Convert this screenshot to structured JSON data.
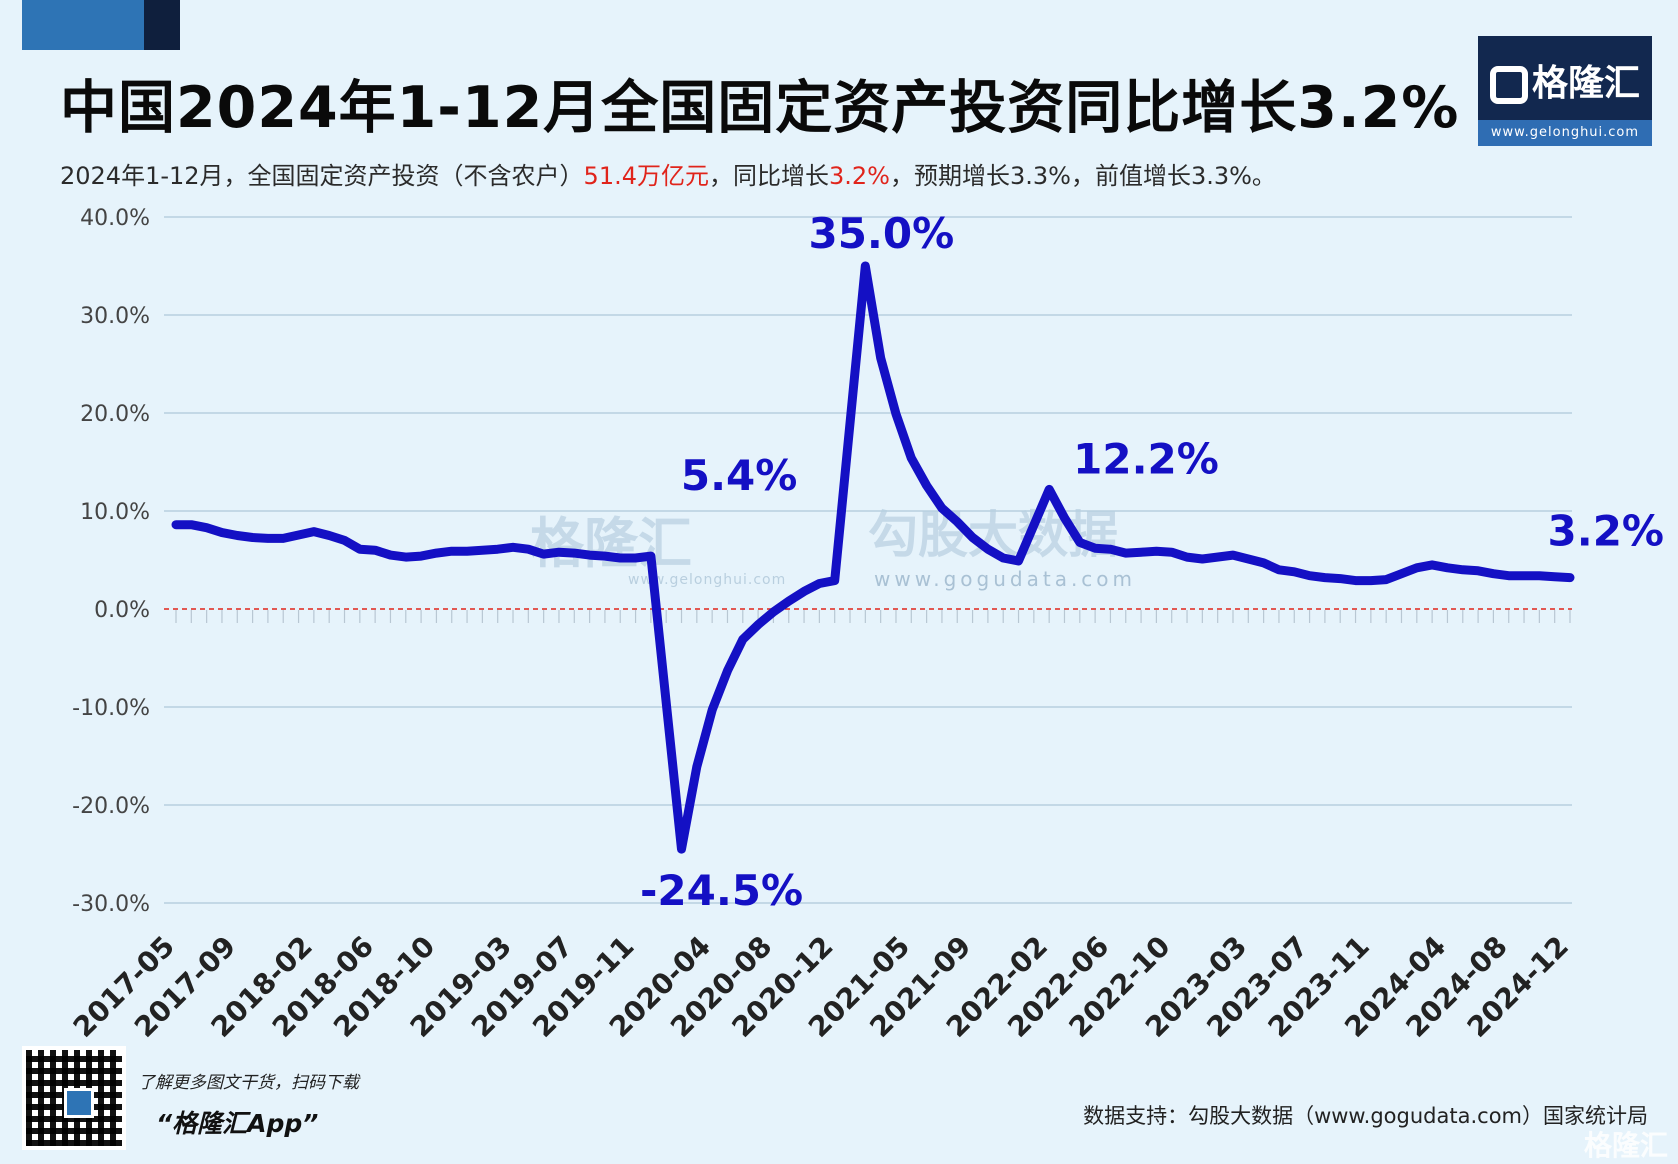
{
  "header": {
    "title": "中国2024年1-12月全国固定资产投资同比增长3.2%",
    "subtitle_part1": "2024年1-12月，全国固定资产投资（不含农户）",
    "subtitle_red1": "51.4万亿元",
    "subtitle_part2": "，同比增长",
    "subtitle_red2": "3.2%",
    "subtitle_part3": "，预期增长3.3%，前值增长3.3%。"
  },
  "logo": {
    "brand": "格隆汇",
    "url": "www.gelonghui.com"
  },
  "watermarks": {
    "gelonghui_cn": "格隆汇",
    "gelonghui_url": "www.gelonghui.com",
    "gogudata_cn": "勾股大数据",
    "gogudata_url": "www.gogudata.com"
  },
  "footer": {
    "promo": "了解更多图文干货，扫码下载",
    "app": "“格隆汇App”",
    "source": "数据支持：勾股大数据（www.gogudata.com）国家统计局",
    "corner_brand": "格隆汇"
  },
  "colors": {
    "line": "#1410c4",
    "zero_line": "#e0241b",
    "grid": "#b7cfdf",
    "label": "#1410c4"
  },
  "chart_data": {
    "type": "line",
    "y_unit": "%",
    "ylim": [
      -30,
      40
    ],
    "yticks": [
      "40.0%",
      "30.0%",
      "20.0%",
      "10.0%",
      "0.0%",
      "-10.0%",
      "-20.0%",
      "-30.0%"
    ],
    "ytick_values": [
      40,
      30,
      20,
      10,
      0,
      -10,
      -20,
      -30
    ],
    "grid": true,
    "xtick_labels": [
      "2017-05",
      "2017-09",
      "2018-02",
      "2018-06",
      "2018-10",
      "2019-03",
      "2019-07",
      "2019-11",
      "2020-04",
      "2020-08",
      "2020-12",
      "2021-05",
      "2021-09",
      "2022-02",
      "2022-06",
      "2022-10",
      "2023-03",
      "2023-07",
      "2023-11",
      "2024-04",
      "2024-08",
      "2024-12"
    ],
    "series": [
      {
        "x": [
          "2017-05",
          "2017-06",
          "2017-07",
          "2017-08",
          "2017-09",
          "2017-10",
          "2017-11",
          "2017-12",
          "2018-02",
          "2018-03",
          "2018-04",
          "2018-05",
          "2018-06",
          "2018-07",
          "2018-08",
          "2018-09",
          "2018-10",
          "2018-11",
          "2018-12",
          "2019-02",
          "2019-03",
          "2019-04",
          "2019-05",
          "2019-06",
          "2019-07",
          "2019-08",
          "2019-09",
          "2019-10",
          "2019-11",
          "2019-12",
          "2020-02",
          "2020-03",
          "2020-04",
          "2020-05",
          "2020-06",
          "2020-07",
          "2020-08",
          "2020-09",
          "2020-10",
          "2020-11",
          "2020-12",
          "2021-02",
          "2021-03",
          "2021-04",
          "2021-05",
          "2021-06",
          "2021-07",
          "2021-08",
          "2021-09",
          "2021-10",
          "2021-11",
          "2021-12",
          "2022-02",
          "2022-03",
          "2022-04",
          "2022-05",
          "2022-06",
          "2022-07",
          "2022-08",
          "2022-09",
          "2022-10",
          "2022-11",
          "2022-12",
          "2023-02",
          "2023-03",
          "2023-04",
          "2023-05",
          "2023-06",
          "2023-07",
          "2023-08",
          "2023-09",
          "2023-10",
          "2023-11",
          "2023-12",
          "2024-02",
          "2024-03",
          "2024-04",
          "2024-05",
          "2024-06",
          "2024-07",
          "2024-08",
          "2024-09",
          "2024-10",
          "2024-11",
          "2024-12"
        ],
        "values": [
          8.6,
          8.6,
          8.3,
          7.8,
          7.5,
          7.3,
          7.2,
          7.2,
          7.9,
          7.5,
          7.0,
          6.1,
          6.0,
          5.5,
          5.3,
          5.4,
          5.7,
          5.9,
          5.9,
          6.1,
          6.3,
          6.1,
          5.6,
          5.8,
          5.7,
          5.5,
          5.4,
          5.2,
          5.2,
          5.4,
          -24.5,
          -16.1,
          -10.3,
          -6.3,
          -3.1,
          -1.6,
          -0.3,
          0.8,
          1.8,
          2.6,
          2.9,
          35.0,
          25.6,
          19.9,
          15.4,
          12.6,
          10.3,
          8.9,
          7.3,
          6.1,
          5.2,
          4.9,
          12.2,
          9.3,
          6.8,
          6.2,
          6.1,
          5.7,
          5.8,
          5.9,
          5.8,
          5.3,
          5.1,
          5.5,
          5.1,
          4.7,
          4.0,
          3.8,
          3.4,
          3.2,
          3.1,
          2.9,
          2.9,
          3.0,
          4.2,
          4.5,
          4.2,
          4.0,
          3.9,
          3.6,
          3.4,
          3.4,
          3.4,
          3.3,
          3.2
        ]
      }
    ],
    "annotations": [
      {
        "x": "2020-02",
        "label": "-24.5%"
      },
      {
        "x": "2019-12",
        "label": "5.4%"
      },
      {
        "x": "2021-02",
        "label": "35.0%"
      },
      {
        "x": "2022-02",
        "label": "12.2%"
      },
      {
        "x": "2024-12",
        "label": "3.2%"
      }
    ]
  }
}
